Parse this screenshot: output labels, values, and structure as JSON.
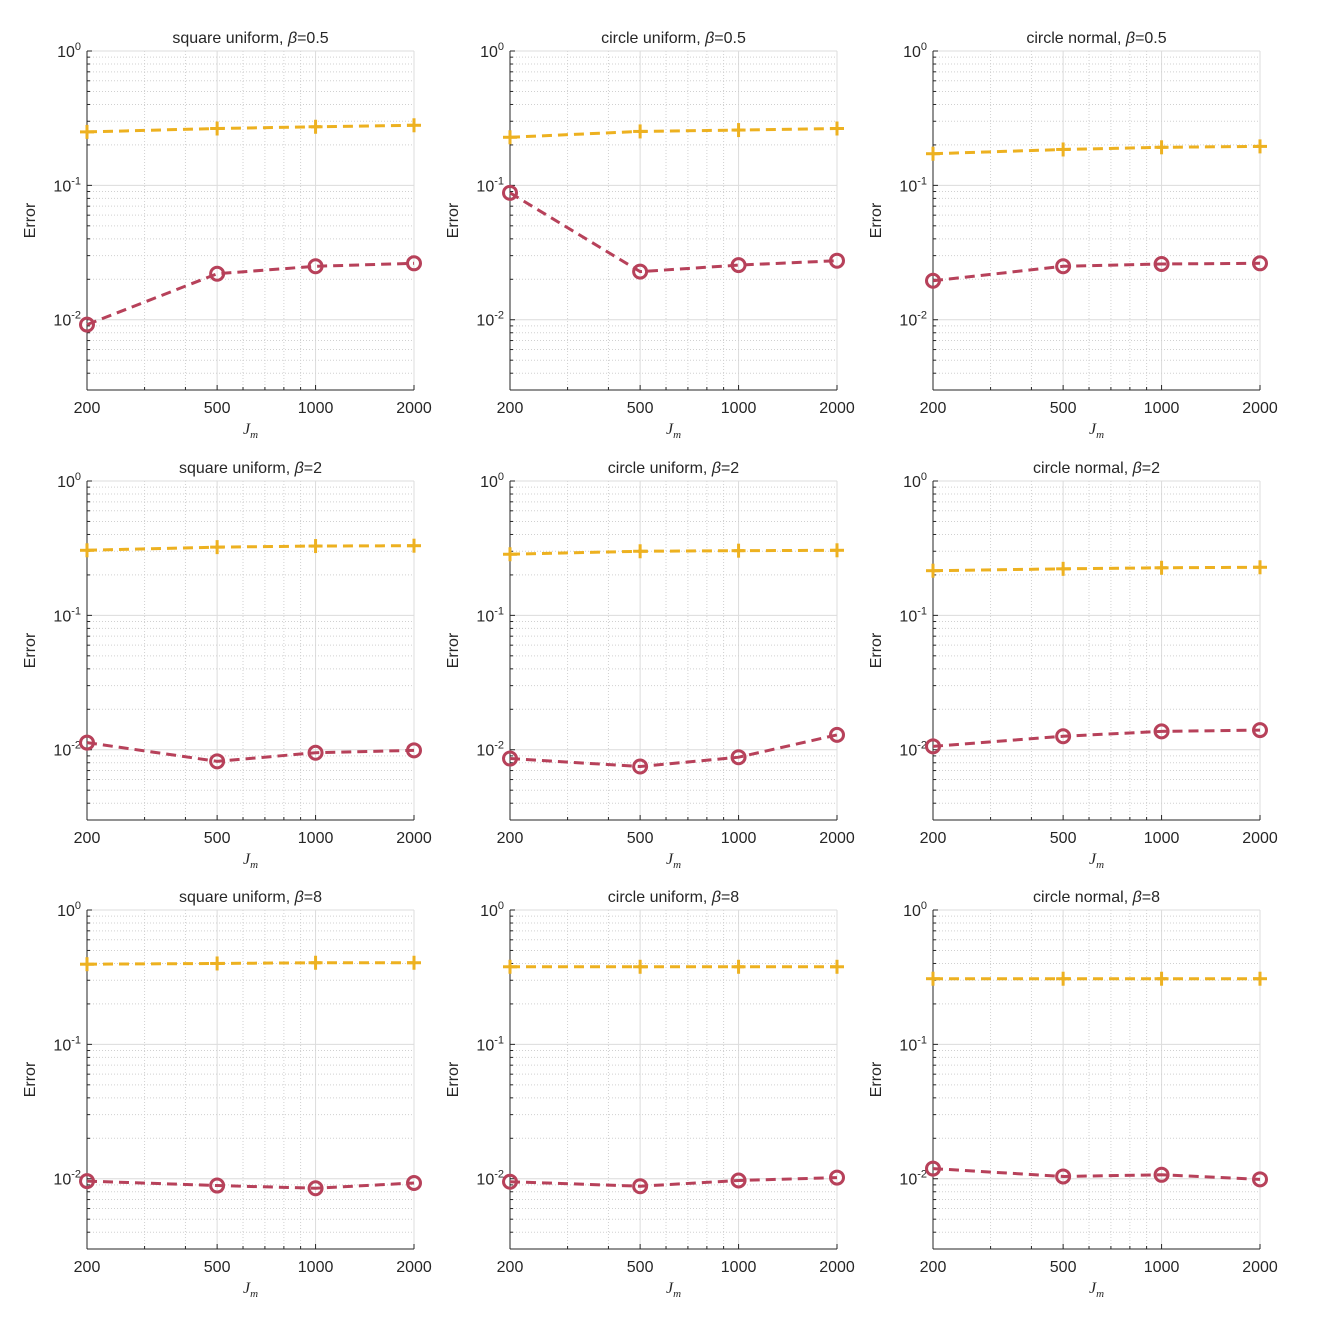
{
  "figure": {
    "ylabel": "Error",
    "xlabel_main": "J",
    "xlabel_sub": "m",
    "x_ticks": [
      "200",
      "500",
      "1000",
      "2000"
    ],
    "y_tick_base": "10",
    "y_tick_exponents": [
      "0",
      "-1",
      "-2"
    ],
    "beta_symbol": "β"
  },
  "colors": {
    "yellow": "#EDB120",
    "red": "#B7415A",
    "grid_major": "#DCDCDC",
    "grid_minor": "#D0D0D0",
    "axis": "#262626"
  },
  "chart_data": [
    {
      "type": "line",
      "title_prefix": "square uniform, ",
      "beta": "0.5",
      "x": [
        200,
        500,
        1000,
        2000
      ],
      "xlim": [
        200,
        2000
      ],
      "ylim": [
        0.003,
        1
      ],
      "xscale": "log",
      "yscale": "log",
      "xlabel": "J_m",
      "ylabel": "Error",
      "grid": true,
      "series": [
        {
          "name": "yellow-plus",
          "marker": "+",
          "color": "#EDB120",
          "values": [
            0.25,
            0.265,
            0.273,
            0.28
          ]
        },
        {
          "name": "red-circle",
          "marker": "o",
          "color": "#B7415A",
          "values": [
            0.0092,
            0.022,
            0.025,
            0.0263
          ]
        }
      ]
    },
    {
      "type": "line",
      "title_prefix": "circle uniform, ",
      "beta": "0.5",
      "x": [
        200,
        500,
        1000,
        2000
      ],
      "xlim": [
        200,
        2000
      ],
      "ylim": [
        0.003,
        1
      ],
      "xscale": "log",
      "yscale": "log",
      "xlabel": "J_m",
      "ylabel": "Error",
      "grid": true,
      "series": [
        {
          "name": "yellow-plus",
          "marker": "+",
          "color": "#EDB120",
          "values": [
            0.228,
            0.252,
            0.258,
            0.265
          ]
        },
        {
          "name": "red-circle",
          "marker": "o",
          "color": "#B7415A",
          "values": [
            0.088,
            0.0228,
            0.0255,
            0.0275
          ]
        }
      ]
    },
    {
      "type": "line",
      "title_prefix": "circle normal, ",
      "beta": "0.5",
      "x": [
        200,
        500,
        1000,
        2000
      ],
      "xlim": [
        200,
        2000
      ],
      "ylim": [
        0.003,
        1
      ],
      "xscale": "log",
      "yscale": "log",
      "xlabel": "J_m",
      "ylabel": "Error",
      "grid": true,
      "series": [
        {
          "name": "yellow-plus",
          "marker": "+",
          "color": "#EDB120",
          "values": [
            0.172,
            0.185,
            0.192,
            0.195
          ]
        },
        {
          "name": "red-circle",
          "marker": "o",
          "color": "#B7415A",
          "values": [
            0.0195,
            0.025,
            0.026,
            0.0263
          ]
        }
      ]
    },
    {
      "type": "line",
      "title_prefix": "square uniform, ",
      "beta": "2",
      "x": [
        200,
        500,
        1000,
        2000
      ],
      "xlim": [
        200,
        2000
      ],
      "ylim": [
        0.003,
        1
      ],
      "xscale": "log",
      "yscale": "log",
      "xlabel": "J_m",
      "ylabel": "Error",
      "grid": true,
      "series": [
        {
          "name": "yellow-plus",
          "marker": "+",
          "color": "#EDB120",
          "values": [
            0.305,
            0.322,
            0.328,
            0.33
          ]
        },
        {
          "name": "red-circle",
          "marker": "o",
          "color": "#B7415A",
          "values": [
            0.0113,
            0.0082,
            0.0095,
            0.0099
          ]
        }
      ]
    },
    {
      "type": "line",
      "title_prefix": "circle uniform, ",
      "beta": "2",
      "x": [
        200,
        500,
        1000,
        2000
      ],
      "xlim": [
        200,
        2000
      ],
      "ylim": [
        0.003,
        1
      ],
      "xscale": "log",
      "yscale": "log",
      "xlabel": "J_m",
      "ylabel": "Error",
      "grid": true,
      "series": [
        {
          "name": "yellow-plus",
          "marker": "+",
          "color": "#EDB120",
          "values": [
            0.285,
            0.3,
            0.303,
            0.305
          ]
        },
        {
          "name": "red-circle",
          "marker": "o",
          "color": "#B7415A",
          "values": [
            0.0086,
            0.0075,
            0.0088,
            0.0129
          ]
        }
      ]
    },
    {
      "type": "line",
      "title_prefix": "circle normal, ",
      "beta": "2",
      "x": [
        200,
        500,
        1000,
        2000
      ],
      "xlim": [
        200,
        2000
      ],
      "ylim": [
        0.003,
        1
      ],
      "xscale": "log",
      "yscale": "log",
      "xlabel": "J_m",
      "ylabel": "Error",
      "grid": true,
      "series": [
        {
          "name": "yellow-plus",
          "marker": "+",
          "color": "#EDB120",
          "values": [
            0.215,
            0.222,
            0.226,
            0.228
          ]
        },
        {
          "name": "red-circle",
          "marker": "o",
          "color": "#B7415A",
          "values": [
            0.0106,
            0.0126,
            0.0137,
            0.014
          ]
        }
      ]
    },
    {
      "type": "line",
      "title_prefix": "square uniform, ",
      "beta": "8",
      "x": [
        200,
        500,
        1000,
        2000
      ],
      "xlim": [
        200,
        2000
      ],
      "ylim": [
        0.003,
        1
      ],
      "xscale": "log",
      "yscale": "log",
      "xlabel": "J_m",
      "ylabel": "Error",
      "grid": true,
      "series": [
        {
          "name": "yellow-plus",
          "marker": "+",
          "color": "#EDB120",
          "values": [
            0.395,
            0.4,
            0.405,
            0.405
          ]
        },
        {
          "name": "red-circle",
          "marker": "o",
          "color": "#B7415A",
          "values": [
            0.0096,
            0.0089,
            0.0085,
            0.0093
          ]
        }
      ]
    },
    {
      "type": "line",
      "title_prefix": "circle uniform, ",
      "beta": "8",
      "x": [
        200,
        500,
        1000,
        2000
      ],
      "xlim": [
        200,
        2000
      ],
      "ylim": [
        0.003,
        1
      ],
      "xscale": "log",
      "yscale": "log",
      "xlabel": "J_m",
      "ylabel": "Error",
      "grid": true,
      "series": [
        {
          "name": "yellow-plus",
          "marker": "+",
          "color": "#EDB120",
          "values": [
            0.378,
            0.378,
            0.378,
            0.378
          ]
        },
        {
          "name": "red-circle",
          "marker": "o",
          "color": "#B7415A",
          "values": [
            0.0095,
            0.0088,
            0.0097,
            0.0102
          ]
        }
      ]
    },
    {
      "type": "line",
      "title_prefix": "circle normal, ",
      "beta": "8",
      "x": [
        200,
        500,
        1000,
        2000
      ],
      "xlim": [
        200,
        2000
      ],
      "ylim": [
        0.003,
        1
      ],
      "xscale": "log",
      "yscale": "log",
      "xlabel": "J_m",
      "ylabel": "Error",
      "grid": true,
      "series": [
        {
          "name": "yellow-plus",
          "marker": "+",
          "color": "#EDB120",
          "values": [
            0.308,
            0.308,
            0.308,
            0.308
          ]
        },
        {
          "name": "red-circle",
          "marker": "o",
          "color": "#B7415A",
          "values": [
            0.0119,
            0.0104,
            0.0107,
            0.0099
          ]
        }
      ]
    }
  ]
}
